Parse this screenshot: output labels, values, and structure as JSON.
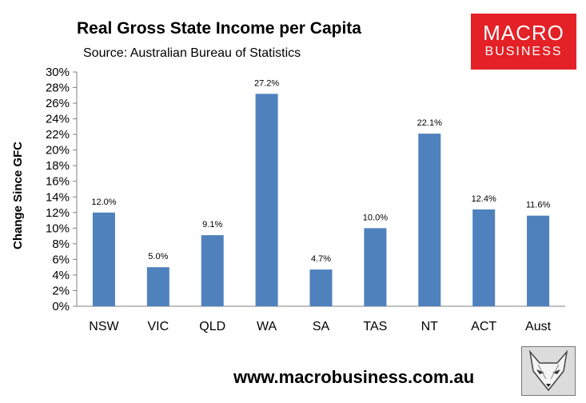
{
  "header": {
    "title": "Real Gross State Income per Capita",
    "subtitle": "Source: Australian Bureau of Statistics"
  },
  "logo": {
    "line1": "MACRO",
    "line2": "BUSINESS"
  },
  "footer": {
    "url": "www.macrobusiness.com.au"
  },
  "colors": {
    "bar": "#4f81bd",
    "logo_red": "#e32126"
  },
  "chart_data": {
    "type": "bar",
    "title": "Real Gross State Income per Capita",
    "subtitle": "Source: Australian Bureau of Statistics",
    "xlabel": "",
    "ylabel": "Change Since GFC",
    "categories": [
      "NSW",
      "VIC",
      "QLD",
      "WA",
      "SA",
      "TAS",
      "NT",
      "ACT",
      "Aust"
    ],
    "values": [
      12.0,
      5.0,
      9.1,
      27.2,
      4.7,
      10.0,
      22.1,
      12.4,
      11.6
    ],
    "data_labels": [
      "12.0%",
      "5.0%",
      "9.1%",
      "27.2%",
      "4.7%",
      "10.0%",
      "22.1%",
      "12.4%",
      "11.6%"
    ],
    "ylim": [
      0,
      30
    ],
    "yticks": [
      0,
      2,
      4,
      6,
      8,
      10,
      12,
      14,
      16,
      18,
      20,
      22,
      24,
      26,
      28,
      30
    ],
    "ytick_labels": [
      "0%",
      "2%",
      "4%",
      "6%",
      "8%",
      "10%",
      "12%",
      "14%",
      "16%",
      "18%",
      "20%",
      "22%",
      "24%",
      "26%",
      "28%",
      "30%"
    ],
    "grid": false,
    "legend": "none"
  }
}
